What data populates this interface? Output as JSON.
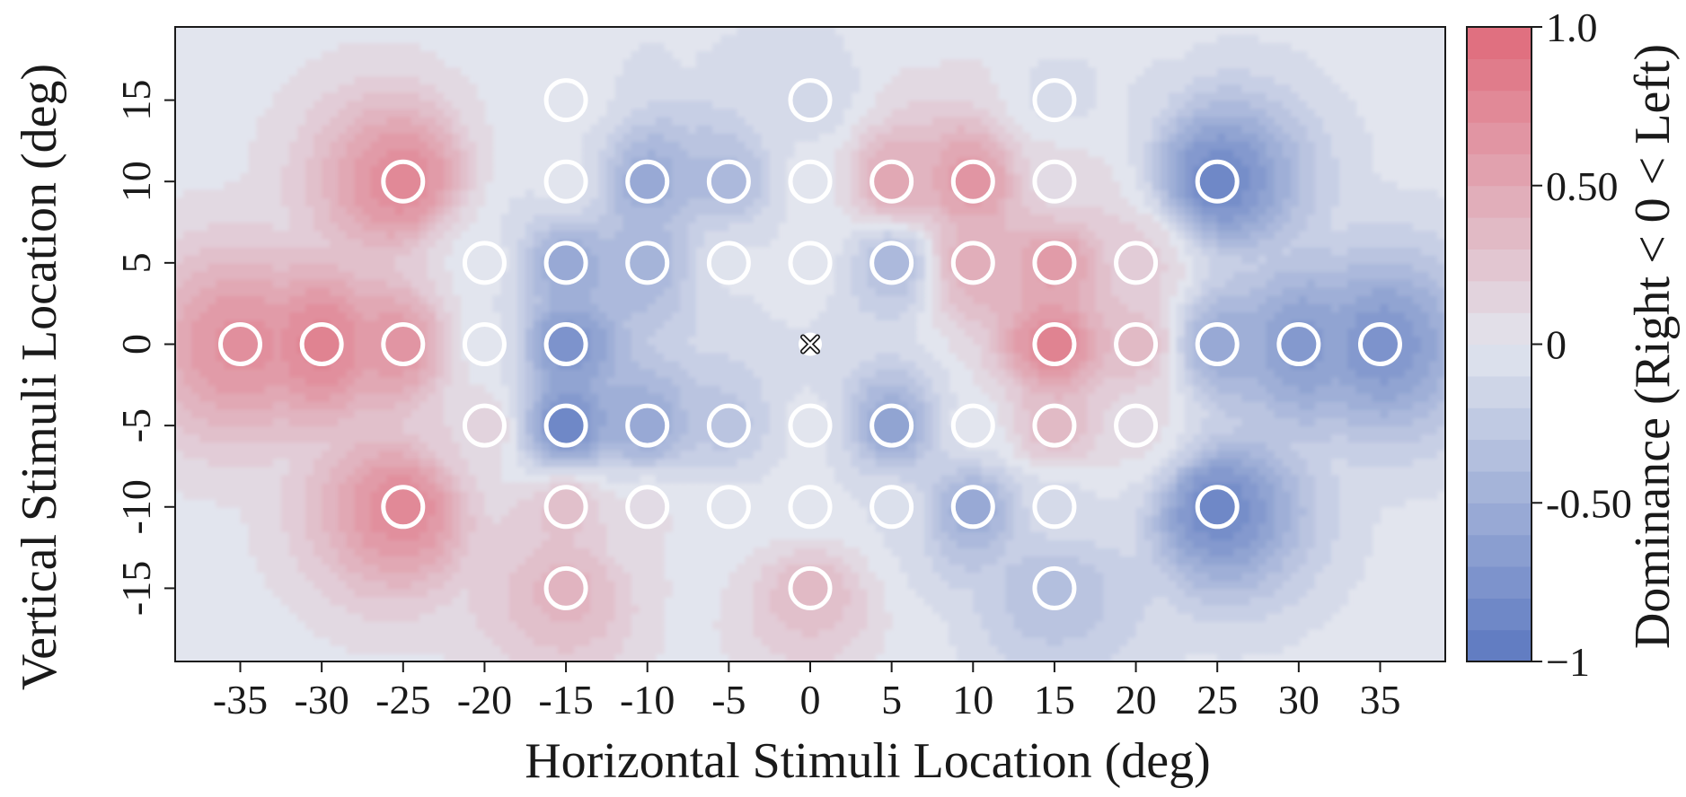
{
  "chart_data": {
    "type": "heatmap",
    "subtype": "filled-contour-with-scatter",
    "xlabel": "Horizontal Stimuli Location (deg)",
    "ylabel": "Vertical Stimuli Location (deg)",
    "colorbar_label": "Dominance (Right < 0 < Left)",
    "xlim": [
      -39,
      39
    ],
    "ylim": [
      -19.5,
      19.5
    ],
    "xticks": [
      -35,
      -30,
      -25,
      -20,
      -15,
      -10,
      -5,
      0,
      5,
      10,
      15,
      20,
      25,
      30,
      35
    ],
    "yticks": [
      -15,
      -10,
      -5,
      0,
      5,
      10,
      15
    ],
    "colorbar_range": [
      -1,
      1
    ],
    "colorbar_ticks": [
      {
        "value": 1.0,
        "label": "1.0"
      },
      {
        "value": 0.5,
        "label": "0.50"
      },
      {
        "value": 0,
        "label": "0"
      },
      {
        "value": -0.5,
        "label": "-0.50"
      },
      {
        "value": -1,
        "label": "−1"
      }
    ],
    "colors": {
      "negative_end": "#5b78c0",
      "neutral": "#e2e5ee",
      "positive_end": "#e06a7a",
      "marker_edge": "#ffffff"
    },
    "fixation": {
      "x": 0,
      "y": 0,
      "marker": "x-cross"
    },
    "points": [
      {
        "x": -15,
        "y": 15,
        "v": 0.0
      },
      {
        "x": 0,
        "y": 15,
        "v": -0.12
      },
      {
        "x": 15,
        "y": 15,
        "v": -0.08
      },
      {
        "x": -25,
        "y": 10,
        "v": 0.75
      },
      {
        "x": -15,
        "y": 10,
        "v": 0.0
      },
      {
        "x": -10,
        "y": 10,
        "v": -0.55
      },
      {
        "x": -5,
        "y": 10,
        "v": -0.4
      },
      {
        "x": 0,
        "y": 10,
        "v": 0.0
      },
      {
        "x": 5,
        "y": 10,
        "v": 0.5
      },
      {
        "x": 10,
        "y": 10,
        "v": 0.65
      },
      {
        "x": 15,
        "y": 10,
        "v": 0.08
      },
      {
        "x": 25,
        "y": 10,
        "v": -0.85
      },
      {
        "x": -20,
        "y": 5,
        "v": 0.0
      },
      {
        "x": -15,
        "y": 5,
        "v": -0.55
      },
      {
        "x": -10,
        "y": 5,
        "v": -0.45
      },
      {
        "x": -5,
        "y": 5,
        "v": -0.02
      },
      {
        "x": 0,
        "y": 5,
        "v": 0.0
      },
      {
        "x": 5,
        "y": 5,
        "v": -0.4
      },
      {
        "x": 10,
        "y": 5,
        "v": 0.45
      },
      {
        "x": 15,
        "y": 5,
        "v": 0.6
      },
      {
        "x": 20,
        "y": 5,
        "v": 0.2
      },
      {
        "x": -35,
        "y": 0,
        "v": 0.7
      },
      {
        "x": -30,
        "y": 0,
        "v": 0.8
      },
      {
        "x": -25,
        "y": 0,
        "v": 0.65
      },
      {
        "x": -20,
        "y": 0,
        "v": 0.0
      },
      {
        "x": -15,
        "y": 0,
        "v": -0.75
      },
      {
        "x": 15,
        "y": 0,
        "v": 0.8
      },
      {
        "x": 20,
        "y": 0,
        "v": 0.35
      },
      {
        "x": 25,
        "y": 0,
        "v": -0.55
      },
      {
        "x": 30,
        "y": 0,
        "v": -0.7
      },
      {
        "x": 35,
        "y": 0,
        "v": -0.75
      },
      {
        "x": -20,
        "y": -5,
        "v": 0.15
      },
      {
        "x": -15,
        "y": -5,
        "v": -0.85
      },
      {
        "x": -10,
        "y": -5,
        "v": -0.55
      },
      {
        "x": -5,
        "y": -5,
        "v": -0.3
      },
      {
        "x": 0,
        "y": -5,
        "v": 0.0
      },
      {
        "x": 5,
        "y": -5,
        "v": -0.6
      },
      {
        "x": 10,
        "y": -5,
        "v": 0.0
      },
      {
        "x": 15,
        "y": -5,
        "v": 0.35
      },
      {
        "x": 20,
        "y": -5,
        "v": 0.08
      },
      {
        "x": -25,
        "y": -10,
        "v": 0.75
      },
      {
        "x": -15,
        "y": -10,
        "v": 0.3
      },
      {
        "x": -10,
        "y": -10,
        "v": 0.08
      },
      {
        "x": -5,
        "y": -10,
        "v": 0.0
      },
      {
        "x": 0,
        "y": -10,
        "v": 0.0
      },
      {
        "x": 5,
        "y": -10,
        "v": -0.05
      },
      {
        "x": 10,
        "y": -10,
        "v": -0.55
      },
      {
        "x": 15,
        "y": -10,
        "v": -0.1
      },
      {
        "x": 25,
        "y": -10,
        "v": -0.85
      },
      {
        "x": -15,
        "y": -15,
        "v": 0.4
      },
      {
        "x": 0,
        "y": -15,
        "v": 0.35
      },
      {
        "x": 15,
        "y": -15,
        "v": -0.35
      }
    ]
  }
}
